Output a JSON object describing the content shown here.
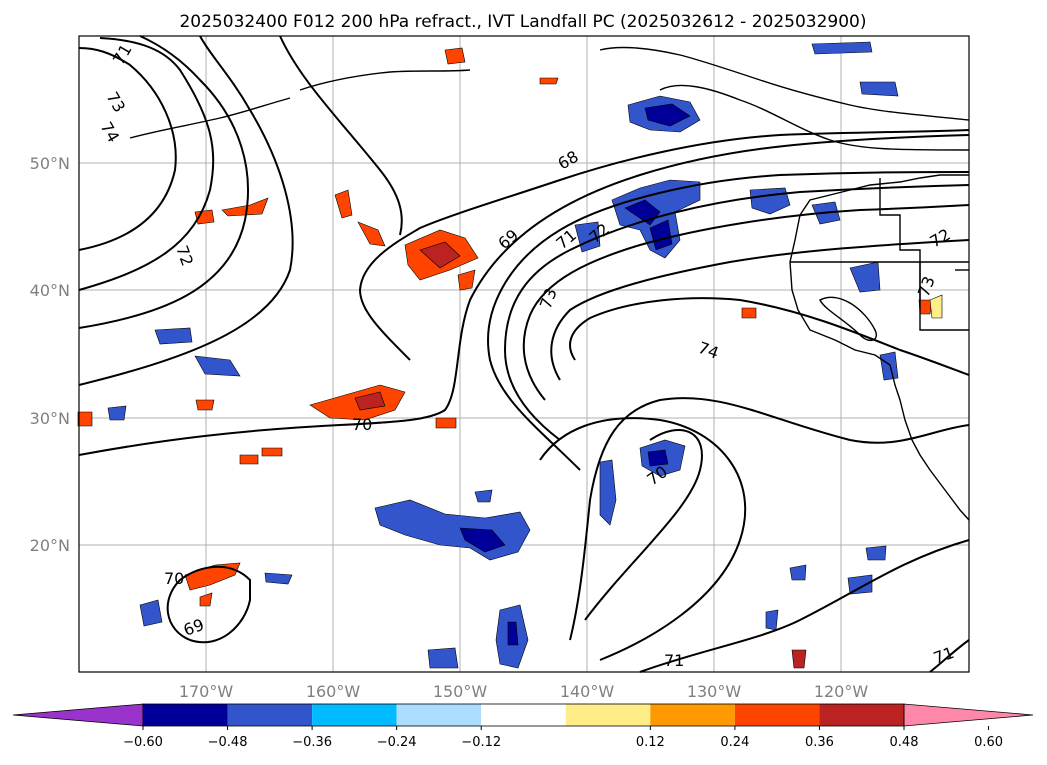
{
  "title": "2025032400 F012 200 hPa refract., IVT Landfall PC (2025032612 - 2025032900)",
  "map": {
    "lat_ticks": [
      "50°N",
      "40°N",
      "30°N",
      "20°N"
    ],
    "lon_ticks": [
      "170°W",
      "160°W",
      "150°W",
      "140°W",
      "130°W",
      "120°W"
    ],
    "gridlines": true,
    "contour_labels": [
      "71",
      "73",
      "74",
      "72",
      "68",
      "69",
      "71",
      "72",
      "73",
      "74",
      "70",
      "70",
      "70",
      "69",
      "71",
      "71",
      "73",
      "72"
    ]
  },
  "colorbar": {
    "orientation": "horizontal",
    "extend": "both",
    "ticks": [
      "−0.60",
      "−0.48",
      "−0.36",
      "−0.24",
      "−0.12",
      "0.12",
      "0.24",
      "0.36",
      "0.48",
      "0.60"
    ],
    "colors": [
      "#9933cc",
      "#000099",
      "#3355cc",
      "#00bbff",
      "#aaddff",
      "#ffffff",
      "#ffee88",
      "#ff9900",
      "#ff4400",
      "#bb2222",
      "#ff88aa"
    ]
  }
}
